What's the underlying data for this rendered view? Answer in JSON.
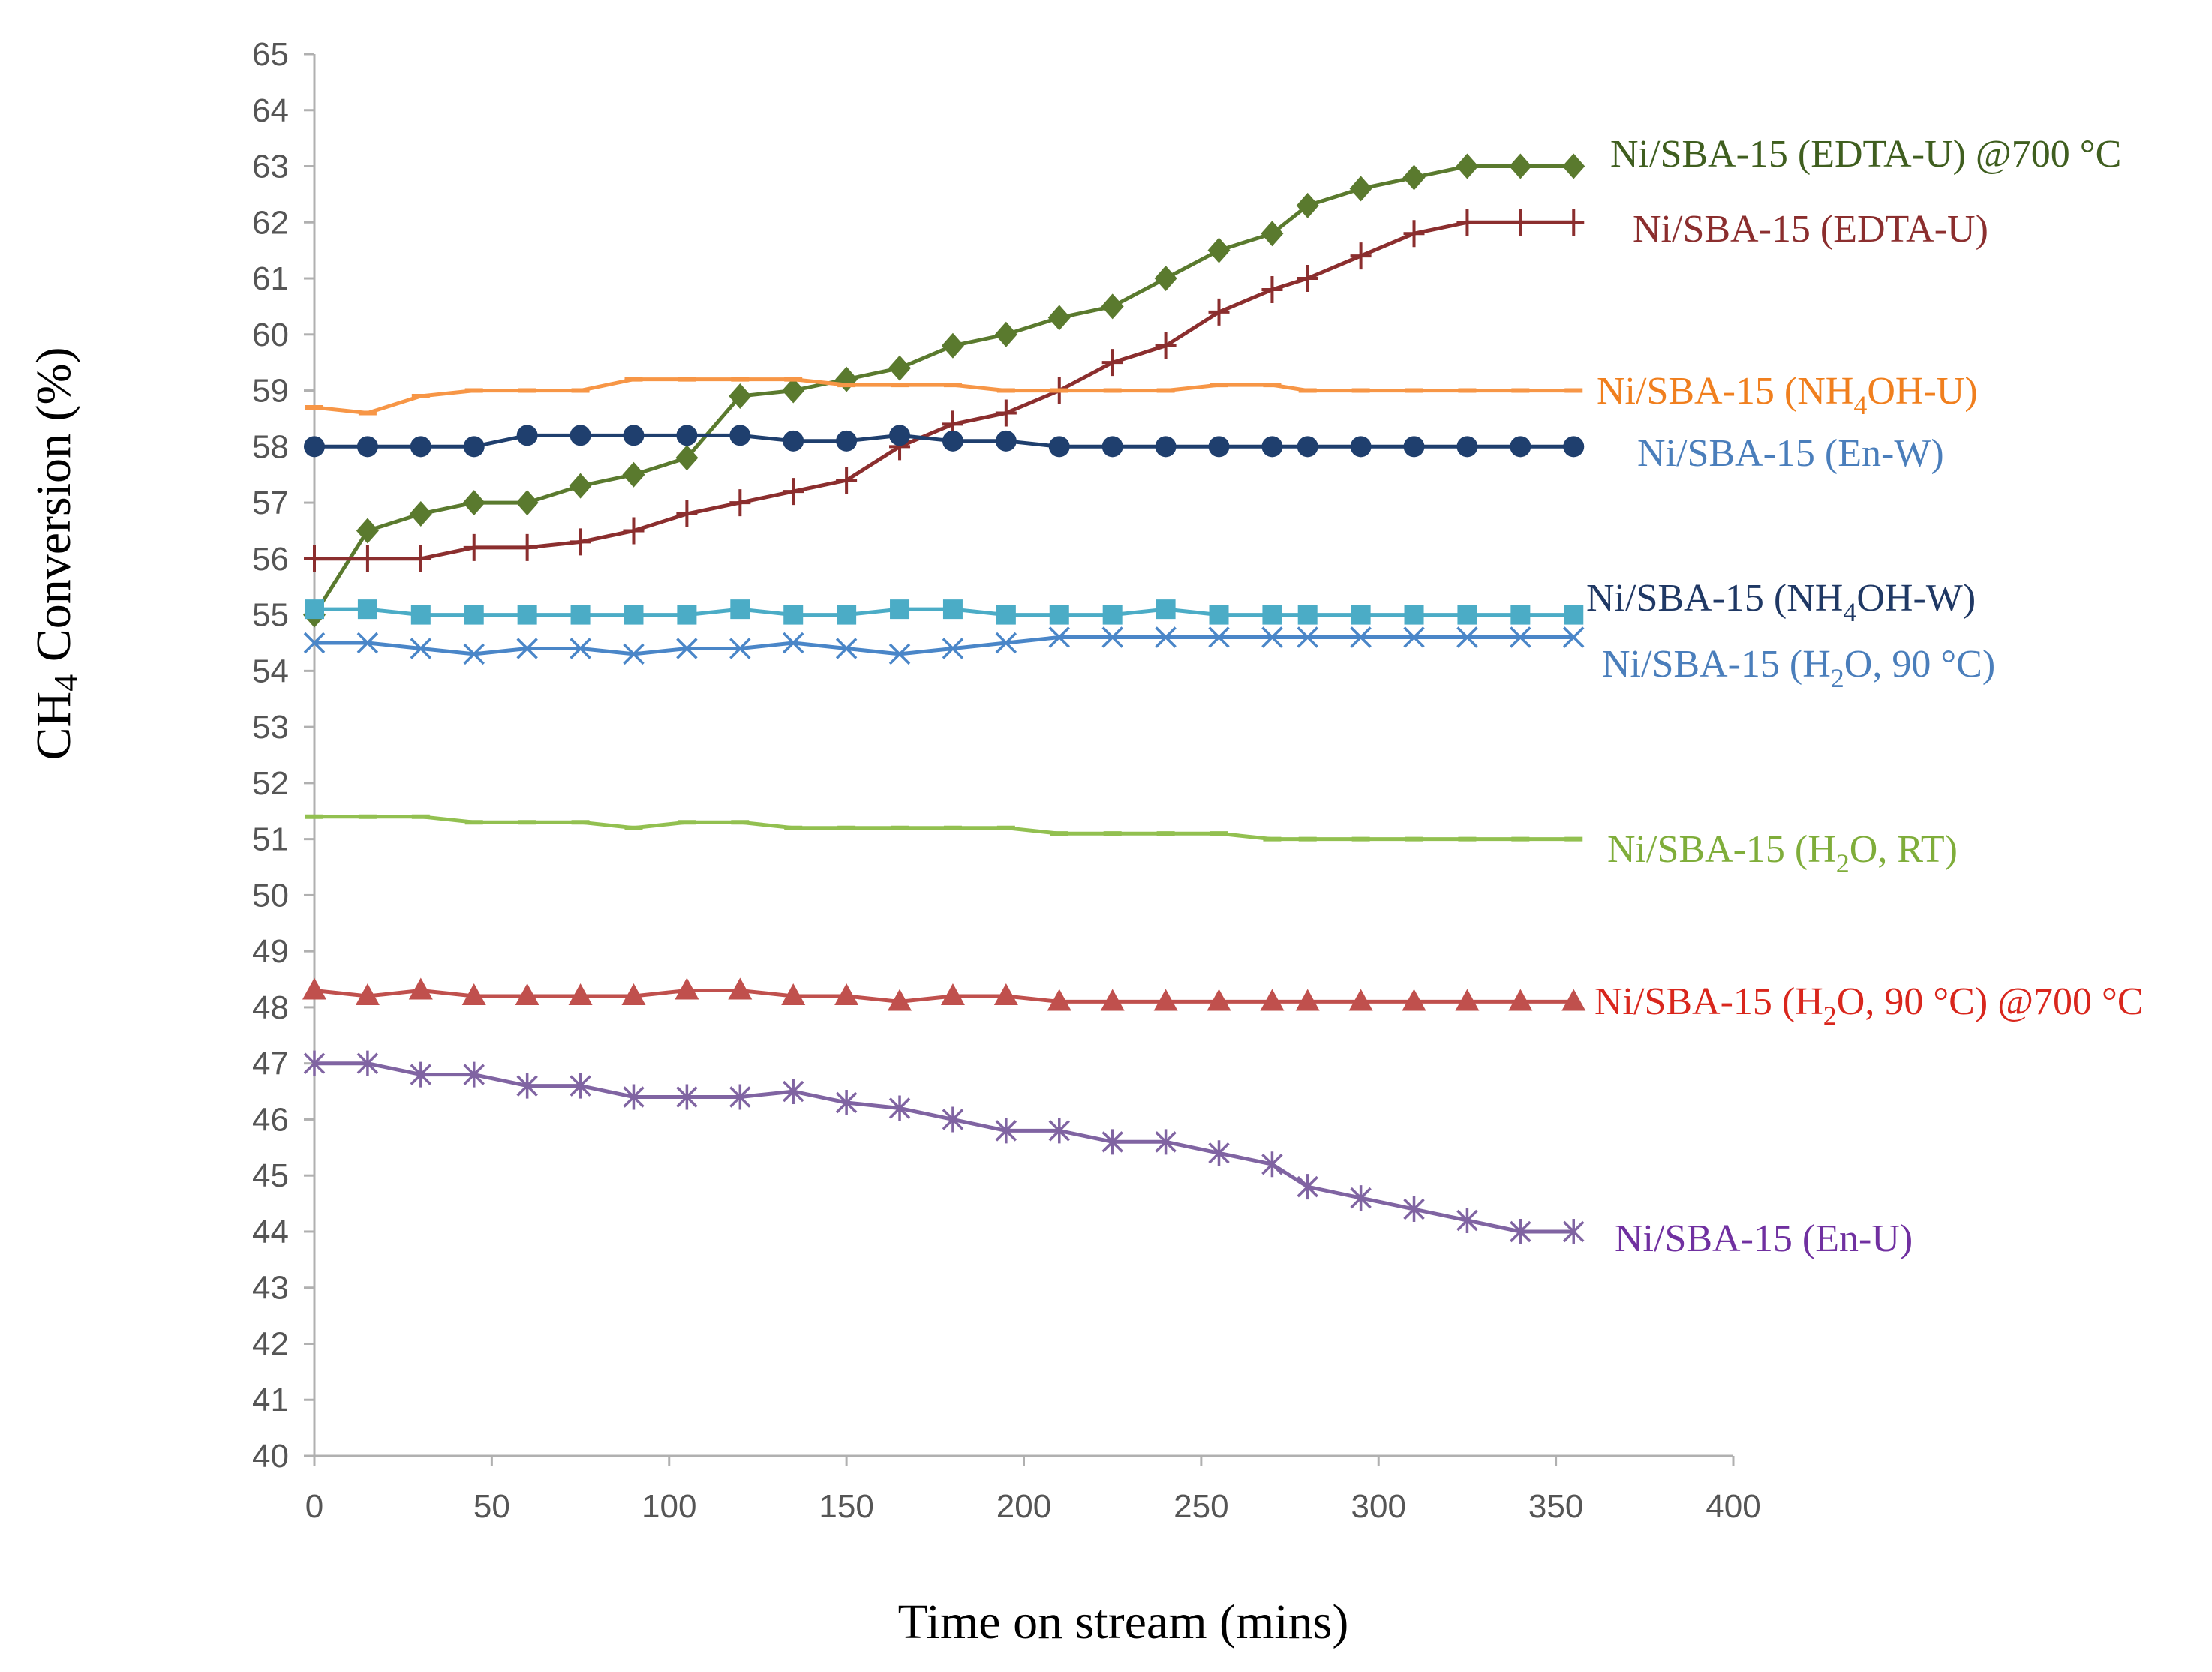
{
  "chart_data": {
    "type": "line",
    "title": "",
    "xlabel": "Time on stream (mins)",
    "ylabel_main": "CH",
    "ylabel_sub": "4",
    "ylabel_rest": " Conversion (%)",
    "xlim": [
      0,
      400
    ],
    "ylim": [
      40,
      65
    ],
    "xticks": [
      "0",
      "50",
      "100",
      "150",
      "200",
      "250",
      "300",
      "350",
      "400"
    ],
    "yticks": [
      "40",
      "41",
      "42",
      "43",
      "44",
      "45",
      "46",
      "47",
      "48",
      "49",
      "50",
      "51",
      "52",
      "53",
      "54",
      "55",
      "56",
      "57",
      "58",
      "59",
      "60",
      "61",
      "62",
      "63",
      "64",
      "65"
    ],
    "grid": false,
    "series": [
      {
        "name": "Ni/SBA-15 (EDTA-U) @700 °C",
        "label_parts": [
          [
            "Ni/SBA-15 (EDTA-U) @700 °C",
            false
          ]
        ],
        "color": "#5a7a2e",
        "label_color": "#3f5e1f",
        "marker": "diamond",
        "x": [
          0,
          15,
          30,
          45,
          60,
          75,
          90,
          105,
          120,
          135,
          150,
          165,
          180,
          195,
          210,
          225,
          240,
          255,
          270,
          280,
          295,
          310,
          325,
          340,
          355
        ],
        "y": [
          55.0,
          56.5,
          56.8,
          57.0,
          57.0,
          57.3,
          57.5,
          57.8,
          58.9,
          59.0,
          59.2,
          59.4,
          59.8,
          60.0,
          60.3,
          60.5,
          61.0,
          61.5,
          61.8,
          62.3,
          62.6,
          62.8,
          63.0,
          63.0,
          63.0
        ]
      },
      {
        "name": "Ni/SBA-15 (EDTA-U)",
        "label_parts": [
          [
            "Ni/SBA-15 (EDTA-U)",
            false
          ]
        ],
        "color": "#8b2e2e",
        "label_color": "#8b2e2e",
        "marker": "plus",
        "x": [
          0,
          15,
          30,
          45,
          60,
          75,
          90,
          105,
          120,
          135,
          150,
          165,
          180,
          195,
          210,
          225,
          240,
          255,
          270,
          280,
          295,
          310,
          325,
          340,
          355
        ],
        "y": [
          56.0,
          56.0,
          56.0,
          56.2,
          56.2,
          56.3,
          56.5,
          56.8,
          57.0,
          57.2,
          57.4,
          58.0,
          58.4,
          58.6,
          59.0,
          59.5,
          59.8,
          60.4,
          60.8,
          61.0,
          61.4,
          61.8,
          62.0,
          62.0,
          62.0
        ]
      },
      {
        "name": "Ni/SBA-15 (NH4OH-U)",
        "label_parts": [
          [
            "Ni/SBA-15 (NH",
            false
          ],
          [
            "4",
            true
          ],
          [
            "OH-U)",
            false
          ]
        ],
        "color": "#f79646",
        "label_color": "#f07f1e",
        "marker": "dash",
        "x": [
          0,
          15,
          30,
          45,
          60,
          75,
          90,
          105,
          120,
          135,
          150,
          165,
          180,
          195,
          210,
          225,
          240,
          255,
          270,
          280,
          295,
          310,
          325,
          340,
          355
        ],
        "y": [
          58.7,
          58.6,
          58.9,
          59.0,
          59.0,
          59.0,
          59.2,
          59.2,
          59.2,
          59.2,
          59.1,
          59.1,
          59.1,
          59.0,
          59.0,
          59.0,
          59.0,
          59.1,
          59.1,
          59.0,
          59.0,
          59.0,
          59.0,
          59.0,
          59.0
        ]
      },
      {
        "name": "Ni/SBA-15 (En-W)",
        "label_parts": [
          [
            "Ni/SBA-15 (En-W)",
            false
          ]
        ],
        "color": "#1f3f6e",
        "label_color": "#4a7ebb",
        "marker": "circle",
        "x": [
          0,
          15,
          30,
          45,
          60,
          75,
          90,
          105,
          120,
          135,
          150,
          165,
          180,
          195,
          210,
          225,
          240,
          255,
          270,
          280,
          295,
          310,
          325,
          340,
          355
        ],
        "y": [
          58.0,
          58.0,
          58.0,
          58.0,
          58.2,
          58.2,
          58.2,
          58.2,
          58.2,
          58.1,
          58.1,
          58.2,
          58.1,
          58.1,
          58.0,
          58.0,
          58.0,
          58.0,
          58.0,
          58.0,
          58.0,
          58.0,
          58.0,
          58.0,
          58.0
        ]
      },
      {
        "name": "Ni/SBA-15 (NH4OH-W)",
        "label_parts": [
          [
            "Ni/SBA-15 (NH",
            false
          ],
          [
            "4",
            true
          ],
          [
            "OH-W)",
            false
          ]
        ],
        "color": "#4bacc6",
        "label_color": "#1f3864",
        "marker": "square",
        "x": [
          0,
          15,
          30,
          45,
          60,
          75,
          90,
          105,
          120,
          135,
          150,
          165,
          180,
          195,
          210,
          225,
          240,
          255,
          270,
          280,
          295,
          310,
          325,
          340,
          355
        ],
        "y": [
          55.1,
          55.1,
          55.0,
          55.0,
          55.0,
          55.0,
          55.0,
          55.0,
          55.1,
          55.0,
          55.0,
          55.1,
          55.1,
          55.0,
          55.0,
          55.0,
          55.1,
          55.0,
          55.0,
          55.0,
          55.0,
          55.0,
          55.0,
          55.0,
          55.0
        ]
      },
      {
        "name": "Ni/SBA-15 (H2O, 90 °C)",
        "label_parts": [
          [
            "Ni/SBA-15 (H",
            false
          ],
          [
            "2",
            true
          ],
          [
            "O, 90 °C)",
            false
          ]
        ],
        "color": "#4a86c8",
        "label_color": "#4a7ebb",
        "marker": "x",
        "x": [
          0,
          15,
          30,
          45,
          60,
          75,
          90,
          105,
          120,
          135,
          150,
          165,
          180,
          195,
          210,
          225,
          240,
          255,
          270,
          280,
          295,
          310,
          325,
          340,
          355
        ],
        "y": [
          54.5,
          54.5,
          54.4,
          54.3,
          54.4,
          54.4,
          54.3,
          54.4,
          54.4,
          54.5,
          54.4,
          54.3,
          54.4,
          54.5,
          54.6,
          54.6,
          54.6,
          54.6,
          54.6,
          54.6,
          54.6,
          54.6,
          54.6,
          54.6,
          54.6
        ]
      },
      {
        "name": "Ni/SBA-15 (H2O, RT)",
        "label_parts": [
          [
            "Ni/SBA-15 (H",
            false
          ],
          [
            "2",
            true
          ],
          [
            "O, RT)",
            false
          ]
        ],
        "color": "#92c050",
        "label_color": "#7fad3a",
        "marker": "dash",
        "x": [
          0,
          15,
          30,
          45,
          60,
          75,
          90,
          105,
          120,
          135,
          150,
          165,
          180,
          195,
          210,
          225,
          240,
          255,
          270,
          280,
          295,
          310,
          325,
          340,
          355
        ],
        "y": [
          51.4,
          51.4,
          51.4,
          51.3,
          51.3,
          51.3,
          51.2,
          51.3,
          51.3,
          51.2,
          51.2,
          51.2,
          51.2,
          51.2,
          51.1,
          51.1,
          51.1,
          51.1,
          51.0,
          51.0,
          51.0,
          51.0,
          51.0,
          51.0,
          51.0
        ]
      },
      {
        "name": "Ni/SBA-15 (H2O, 90 °C) @700 °C",
        "label_parts": [
          [
            "Ni/SBA-15 (H",
            false
          ],
          [
            "2",
            true
          ],
          [
            "O, 90 °C) @700 °C",
            false
          ]
        ],
        "color": "#c0504d",
        "label_color": "#d9261c",
        "marker": "triangle",
        "x": [
          0,
          15,
          30,
          45,
          60,
          75,
          90,
          105,
          120,
          135,
          150,
          165,
          180,
          195,
          210,
          225,
          240,
          255,
          270,
          280,
          295,
          310,
          325,
          340,
          355
        ],
        "y": [
          48.3,
          48.2,
          48.3,
          48.2,
          48.2,
          48.2,
          48.2,
          48.3,
          48.3,
          48.2,
          48.2,
          48.1,
          48.2,
          48.2,
          48.1,
          48.1,
          48.1,
          48.1,
          48.1,
          48.1,
          48.1,
          48.1,
          48.1,
          48.1,
          48.1
        ]
      },
      {
        "name": "Ni/SBA-15 (En-U)",
        "label_parts": [
          [
            "Ni/SBA-15 (En-U)",
            false
          ]
        ],
        "color": "#8064a2",
        "label_color": "#7030a0",
        "marker": "asterisk",
        "x": [
          0,
          15,
          30,
          45,
          60,
          75,
          90,
          105,
          120,
          135,
          150,
          165,
          180,
          195,
          210,
          225,
          240,
          255,
          270,
          280,
          295,
          310,
          325,
          340,
          355
        ],
        "y": [
          47.0,
          47.0,
          46.8,
          46.8,
          46.6,
          46.6,
          46.4,
          46.4,
          46.4,
          46.5,
          46.3,
          46.2,
          46.0,
          45.8,
          45.8,
          45.6,
          45.6,
          45.4,
          45.2,
          44.8,
          44.6,
          44.4,
          44.2,
          44.0,
          44.0
        ]
      }
    ]
  }
}
